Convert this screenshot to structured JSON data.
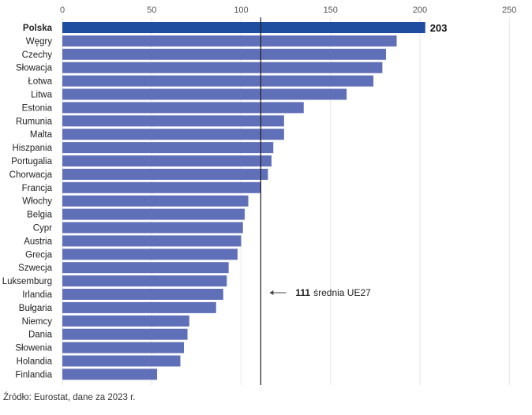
{
  "chart_data": {
    "type": "bar",
    "orientation": "horizontal",
    "categories": [
      "Polska",
      "Węgry",
      "Czechy",
      "Słowacja",
      "Łotwa",
      "Litwa",
      "Estonia",
      "Rumunia",
      "Malta",
      "Hiszpania",
      "Portugalia",
      "Chorwacja",
      "Francja",
      "Włochy",
      "Belgia",
      "Cypr",
      "Austria",
      "Grecja",
      "Szwecja",
      "Luksemburg",
      "Irlandia",
      "Bułgaria",
      "Niemcy",
      "Dania",
      "Słowenia",
      "Holandia",
      "Finlandia"
    ],
    "values": [
      203,
      187,
      181,
      179,
      174,
      159,
      135,
      124,
      124,
      118,
      117,
      115,
      111,
      104,
      102,
      101,
      100,
      98,
      93,
      92,
      90,
      86,
      71,
      70,
      68,
      66,
      53
    ],
    "highlight_index": 0,
    "highlight_label": "203",
    "xlim": [
      0,
      250
    ],
    "xticks": [
      "0",
      "50",
      "100",
      "150",
      "200",
      "250"
    ],
    "grid": true,
    "reference_line": {
      "value": 111,
      "label_value": "111",
      "label_text": "średnia UE27"
    },
    "colors": {
      "bar": "#6070b8",
      "highlight": "#1f4ea0",
      "reference": "#222222",
      "grid": "#e6e6e6"
    }
  },
  "source_note": "Źródło: Eurostat, dane za 2023 r."
}
